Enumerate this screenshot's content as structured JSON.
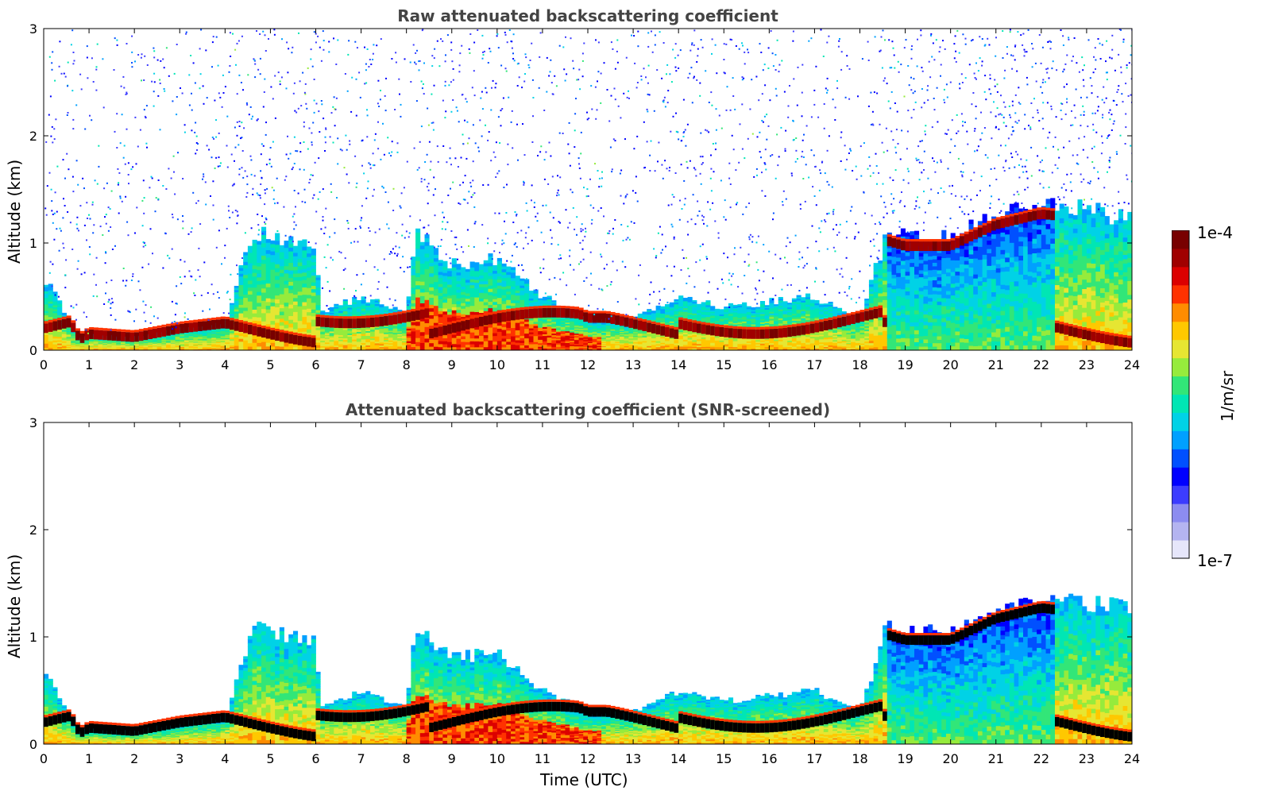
{
  "colors": {
    "colormap": [
      "#e6e6fa",
      "#b4b4f0",
      "#8c8cf0",
      "#3c3cff",
      "#0000ff",
      "#0050ff",
      "#00a0ff",
      "#00d2e6",
      "#00e6b4",
      "#32e678",
      "#96eb3c",
      "#e6e632",
      "#ffc800",
      "#ff8c00",
      "#ff3200",
      "#dc0000",
      "#a00000",
      "#780000"
    ],
    "screened_core": "#000000"
  },
  "colorbar": {
    "max_label": "1e-4",
    "min_label": "1e-7",
    "unit": "1/m/sr",
    "scale": "log"
  },
  "chart_data": [
    {
      "type": "heatmap",
      "title": "Raw attenuated backscattering coefficient",
      "xlabel": "",
      "ylabel": "Altitude (km)",
      "xlim": [
        0,
        24
      ],
      "ylim": [
        0,
        3
      ],
      "xticks": [
        "0",
        "1",
        "2",
        "3",
        "4",
        "5",
        "6",
        "7",
        "8",
        "9",
        "10",
        "11",
        "12",
        "13",
        "14",
        "15",
        "16",
        "17",
        "18",
        "19",
        "20",
        "21",
        "22",
        "23",
        "24"
      ],
      "yticks": [
        "0",
        "1",
        "2",
        "3"
      ],
      "grid": false,
      "layer_top_km": [
        [
          0,
          0.7
        ],
        [
          0.8,
          0.1
        ],
        [
          1.0,
          0.15
        ],
        [
          2.0,
          0.12
        ],
        [
          3.0,
          0.2
        ],
        [
          4.0,
          0.25
        ],
        [
          4.6,
          1.1
        ],
        [
          5.0,
          1.05
        ],
        [
          5.5,
          1.0
        ],
        [
          6.0,
          1.0
        ],
        [
          6.1,
          0.35
        ],
        [
          7.0,
          0.5
        ],
        [
          8.0,
          0.35
        ],
        [
          8.2,
          1.1
        ],
        [
          9.0,
          0.8
        ],
        [
          10.0,
          0.85
        ],
        [
          11.0,
          0.5
        ],
        [
          12.0,
          0.3
        ],
        [
          13.0,
          0.3
        ],
        [
          14.0,
          0.5
        ],
        [
          15.0,
          0.4
        ],
        [
          16.0,
          0.45
        ],
        [
          17.0,
          0.5
        ],
        [
          18.0,
          0.3
        ],
        [
          18.6,
          1.1
        ],
        [
          19.0,
          1.05
        ],
        [
          20.0,
          1.05
        ],
        [
          21.0,
          1.25
        ],
        [
          22.0,
          1.35
        ],
        [
          23.0,
          1.3
        ],
        [
          24.0,
          1.25
        ]
      ]
    },
    {
      "type": "heatmap",
      "title": "Attenuated backscattering coefficient (SNR-screened)",
      "xlabel": "Time (UTC)",
      "ylabel": "Altitude (km)",
      "xlim": [
        0,
        24
      ],
      "ylim": [
        0,
        3
      ],
      "xticks": [
        "0",
        "1",
        "2",
        "3",
        "4",
        "5",
        "6",
        "7",
        "8",
        "9",
        "10",
        "11",
        "12",
        "13",
        "14",
        "15",
        "16",
        "17",
        "18",
        "19",
        "20",
        "21",
        "22",
        "23",
        "24"
      ],
      "yticks": [
        "0",
        "1",
        "2",
        "3"
      ],
      "grid": false
    }
  ]
}
